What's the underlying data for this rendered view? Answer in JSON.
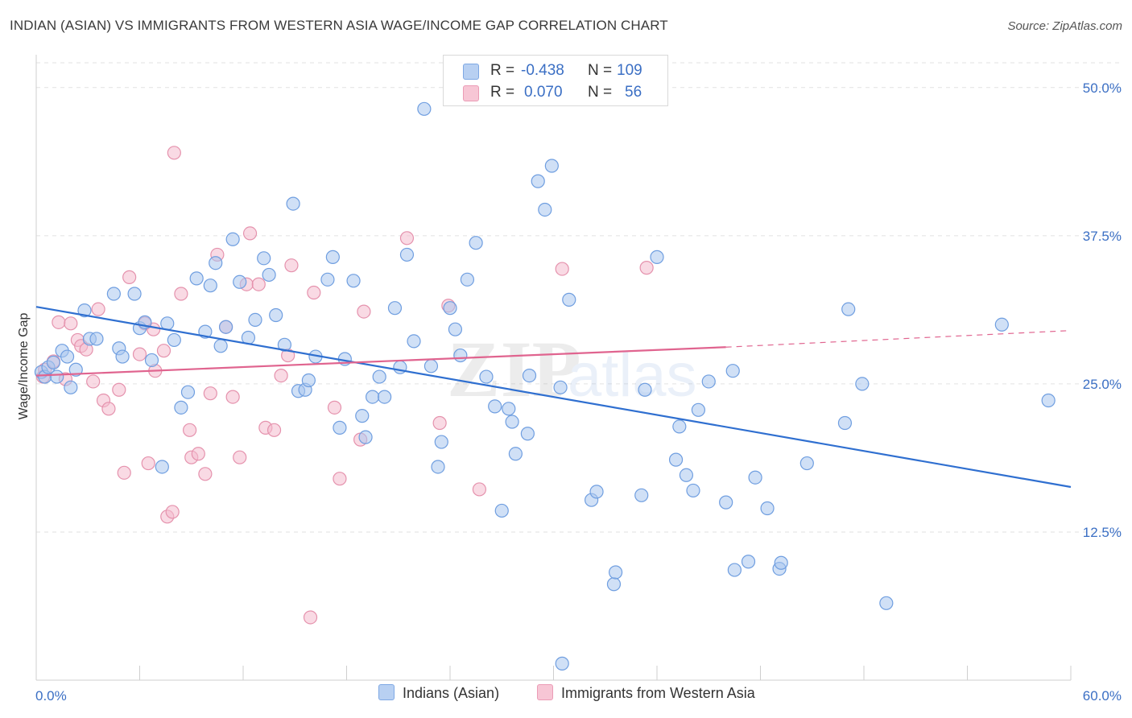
{
  "title": "INDIAN (ASIAN) VS IMMIGRANTS FROM WESTERN ASIA WAGE/INCOME GAP CORRELATION CHART",
  "source": "Source: ZipAtlas.com",
  "legend": {
    "r_label": "R =",
    "n_label": "N =",
    "rows": [
      {
        "r": "-0.438",
        "n": "109"
      },
      {
        "r": "0.070",
        "n": "56"
      }
    ]
  },
  "bottom_legend": [
    "Indians (Asian)",
    "Immigrants from Western Asia"
  ],
  "colors": {
    "blue_fill": "#a9c6ee",
    "blue_stroke": "#6f9ee0",
    "blue_line": "#2f6fd0",
    "pink_fill": "#f4bccd",
    "pink_stroke": "#e592ad",
    "pink_line": "#e0648f",
    "tick_text": "#3b6fc4"
  },
  "chart_data": {
    "type": "scatter",
    "xlabel": "",
    "ylabel": "Wage/Income Gap",
    "xlim": [
      0,
      60
    ],
    "ylim": [
      0,
      52.5
    ],
    "x_tick_labels": [
      "0.0%",
      "60.0%"
    ],
    "y_tick_labels": [
      "12.5%",
      "25.0%",
      "37.5%",
      "50.0%"
    ],
    "y_ticks": [
      12.5,
      25.0,
      37.5,
      50.0
    ],
    "grid": true,
    "series": [
      {
        "name": "Indians (Asian)",
        "color": "#a9c6ee",
        "points": [
          [
            0.3,
            26.0
          ],
          [
            0.5,
            25.6
          ],
          [
            0.7,
            26.4
          ],
          [
            1.0,
            26.8
          ],
          [
            1.2,
            25.6
          ],
          [
            1.5,
            27.8
          ],
          [
            1.8,
            27.3
          ],
          [
            2.0,
            24.7
          ],
          [
            2.3,
            26.2
          ],
          [
            2.8,
            31.2
          ],
          [
            3.1,
            28.8
          ],
          [
            3.5,
            28.8
          ],
          [
            4.5,
            32.6
          ],
          [
            4.8,
            28.0
          ],
          [
            5.0,
            27.3
          ],
          [
            5.7,
            32.6
          ],
          [
            6.0,
            29.7
          ],
          [
            6.3,
            30.2
          ],
          [
            6.7,
            27.0
          ],
          [
            7.3,
            18.0
          ],
          [
            7.6,
            30.1
          ],
          [
            8.0,
            28.7
          ],
          [
            8.4,
            23.0
          ],
          [
            8.8,
            24.3
          ],
          [
            9.3,
            33.9
          ],
          [
            9.8,
            29.4
          ],
          [
            10.1,
            33.3
          ],
          [
            10.4,
            35.2
          ],
          [
            10.7,
            28.2
          ],
          [
            11.0,
            29.8
          ],
          [
            11.4,
            37.2
          ],
          [
            11.8,
            33.6
          ],
          [
            12.3,
            28.9
          ],
          [
            12.7,
            30.4
          ],
          [
            13.2,
            35.6
          ],
          [
            13.5,
            34.2
          ],
          [
            13.9,
            30.8
          ],
          [
            14.4,
            28.3
          ],
          [
            14.9,
            40.2
          ],
          [
            15.2,
            24.4
          ],
          [
            15.6,
            24.5
          ],
          [
            15.8,
            25.3
          ],
          [
            16.2,
            27.3
          ],
          [
            16.9,
            33.8
          ],
          [
            17.2,
            35.7
          ],
          [
            17.6,
            21.3
          ],
          [
            17.9,
            27.1
          ],
          [
            18.4,
            33.7
          ],
          [
            18.9,
            22.3
          ],
          [
            19.1,
            20.5
          ],
          [
            19.5,
            23.9
          ],
          [
            19.9,
            25.6
          ],
          [
            20.2,
            23.9
          ],
          [
            20.8,
            31.4
          ],
          [
            21.1,
            26.4
          ],
          [
            21.5,
            35.9
          ],
          [
            21.9,
            28.6
          ],
          [
            22.5,
            48.2
          ],
          [
            22.9,
            26.5
          ],
          [
            23.3,
            18.0
          ],
          [
            23.5,
            20.1
          ],
          [
            24.0,
            31.4
          ],
          [
            24.3,
            29.6
          ],
          [
            24.6,
            27.4
          ],
          [
            25.0,
            33.8
          ],
          [
            25.5,
            36.9
          ],
          [
            26.1,
            25.6
          ],
          [
            26.6,
            23.1
          ],
          [
            27.0,
            14.3
          ],
          [
            27.4,
            22.9
          ],
          [
            27.6,
            21.8
          ],
          [
            27.8,
            19.1
          ],
          [
            28.5,
            20.8
          ],
          [
            28.6,
            25.7
          ],
          [
            29.1,
            42.1
          ],
          [
            29.5,
            39.7
          ],
          [
            29.9,
            43.4
          ],
          [
            30.4,
            24.7
          ],
          [
            30.5,
            1.4
          ],
          [
            30.9,
            32.1
          ],
          [
            32.2,
            15.2
          ],
          [
            32.5,
            15.9
          ],
          [
            33.5,
            8.1
          ],
          [
            33.6,
            9.1
          ],
          [
            35.1,
            15.6
          ],
          [
            35.3,
            24.5
          ],
          [
            36.0,
            35.7
          ],
          [
            37.1,
            18.6
          ],
          [
            37.3,
            21.4
          ],
          [
            37.7,
            17.3
          ],
          [
            38.1,
            16.0
          ],
          [
            38.4,
            22.8
          ],
          [
            39.0,
            25.2
          ],
          [
            40.0,
            15.0
          ],
          [
            40.4,
            26.1
          ],
          [
            40.5,
            9.3
          ],
          [
            41.3,
            10.0
          ],
          [
            41.7,
            17.1
          ],
          [
            42.4,
            14.5
          ],
          [
            43.1,
            9.4
          ],
          [
            43.2,
            9.9
          ],
          [
            44.7,
            18.3
          ],
          [
            46.9,
            21.7
          ],
          [
            47.1,
            31.3
          ],
          [
            47.9,
            25.0
          ],
          [
            49.3,
            6.5
          ],
          [
            56.0,
            30.0
          ],
          [
            58.7,
            23.6
          ]
        ]
      },
      {
        "name": "Immigrants from Western Asia",
        "color": "#f4bccd",
        "points": [
          [
            0.4,
            25.6
          ],
          [
            0.5,
            26.2
          ],
          [
            1.0,
            26.9
          ],
          [
            1.3,
            30.2
          ],
          [
            1.7,
            25.4
          ],
          [
            2.0,
            30.1
          ],
          [
            2.4,
            28.7
          ],
          [
            2.6,
            28.2
          ],
          [
            2.9,
            27.9
          ],
          [
            3.3,
            25.2
          ],
          [
            3.6,
            31.3
          ],
          [
            3.9,
            23.6
          ],
          [
            4.2,
            22.9
          ],
          [
            4.8,
            24.5
          ],
          [
            5.1,
            17.5
          ],
          [
            5.4,
            34.0
          ],
          [
            6.0,
            27.5
          ],
          [
            6.3,
            30.1
          ],
          [
            6.5,
            18.3
          ],
          [
            6.8,
            29.6
          ],
          [
            6.9,
            26.1
          ],
          [
            7.4,
            27.8
          ],
          [
            7.6,
            13.8
          ],
          [
            7.9,
            14.2
          ],
          [
            8.0,
            44.5
          ],
          [
            8.4,
            32.6
          ],
          [
            8.9,
            21.1
          ],
          [
            9.0,
            18.8
          ],
          [
            9.4,
            19.1
          ],
          [
            9.8,
            17.4
          ],
          [
            10.1,
            24.2
          ],
          [
            10.5,
            35.9
          ],
          [
            11.0,
            29.8
          ],
          [
            11.4,
            23.9
          ],
          [
            11.8,
            18.8
          ],
          [
            12.2,
            33.4
          ],
          [
            12.4,
            37.7
          ],
          [
            12.9,
            33.4
          ],
          [
            13.3,
            21.3
          ],
          [
            13.8,
            21.1
          ],
          [
            14.2,
            25.7
          ],
          [
            14.6,
            27.4
          ],
          [
            14.8,
            35.0
          ],
          [
            15.9,
            5.3
          ],
          [
            16.1,
            32.7
          ],
          [
            17.3,
            23.0
          ],
          [
            17.6,
            17.0
          ],
          [
            18.8,
            20.3
          ],
          [
            19.0,
            31.1
          ],
          [
            21.5,
            37.3
          ],
          [
            23.4,
            21.7
          ],
          [
            23.9,
            31.6
          ],
          [
            25.7,
            16.1
          ],
          [
            30.5,
            34.7
          ],
          [
            35.4,
            34.8
          ]
        ]
      }
    ],
    "trend_lines": [
      {
        "series": "Indians (Asian)",
        "x": [
          0,
          60
        ],
        "y": [
          31.5,
          16.3
        ],
        "style": "solid"
      },
      {
        "series": "Immigrants from Western Asia",
        "x": [
          0,
          40
        ],
        "y": [
          25.7,
          28.1
        ],
        "style": "solid"
      },
      {
        "series": "Immigrants from Western Asia",
        "x": [
          40,
          60
        ],
        "y": [
          28.1,
          29.5
        ],
        "style": "dashed"
      }
    ]
  }
}
